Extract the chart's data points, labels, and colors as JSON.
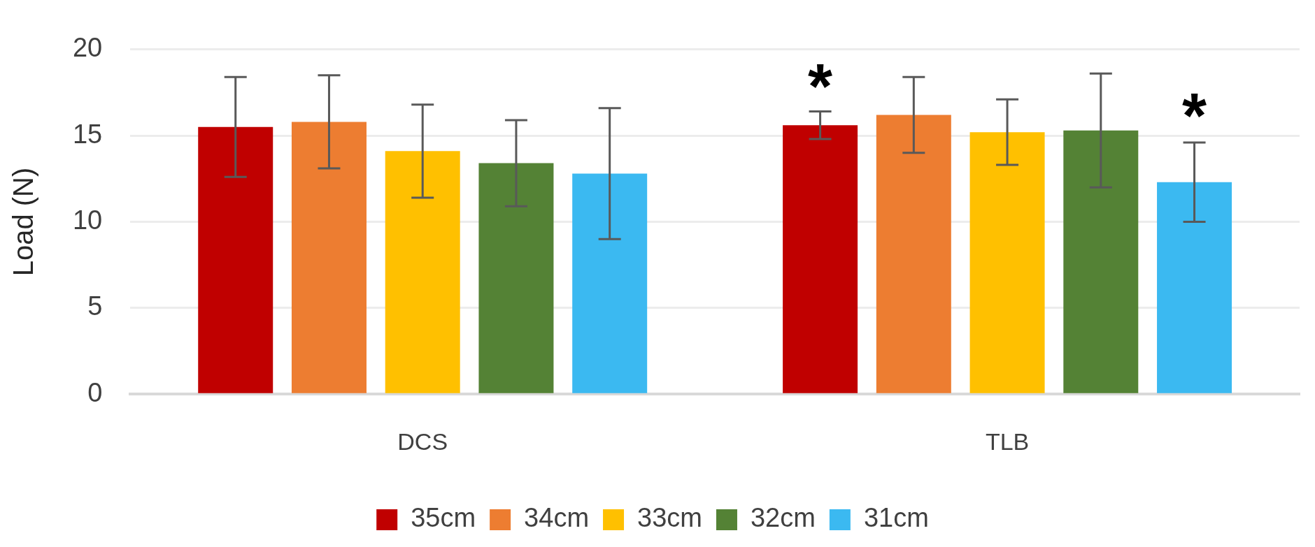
{
  "chart_data": {
    "type": "bar",
    "ylabel": "Load (N)",
    "categories": [
      "DCS",
      "TLB"
    ],
    "series": [
      {
        "name": "35cm",
        "color": "#c00000",
        "values": [
          15.5,
          15.6
        ],
        "errors": [
          2.9,
          0.8
        ]
      },
      {
        "name": "34cm",
        "color": "#ed7d31",
        "values": [
          15.8,
          16.2
        ],
        "errors": [
          2.7,
          2.2
        ]
      },
      {
        "name": "33cm",
        "color": "#ffc000",
        "values": [
          14.1,
          15.2
        ],
        "errors": [
          2.7,
          1.9
        ]
      },
      {
        "name": "32cm",
        "color": "#548235",
        "values": [
          13.4,
          15.3
        ],
        "errors": [
          2.5,
          3.3
        ]
      },
      {
        "name": "31cm",
        "color": "#3bb9f1",
        "values": [
          12.8,
          12.3
        ],
        "errors": [
          3.8,
          2.3
        ]
      }
    ],
    "ylim": [
      0,
      20
    ],
    "yticks": [
      0,
      5,
      10,
      15,
      20
    ],
    "grid": "y",
    "legend": "bottom",
    "annotations": [
      {
        "text": "*",
        "x": "TLB",
        "y": 16.9
      },
      {
        "text": "*",
        "x": "TLB",
        "y": 15.2
      }
    ]
  }
}
